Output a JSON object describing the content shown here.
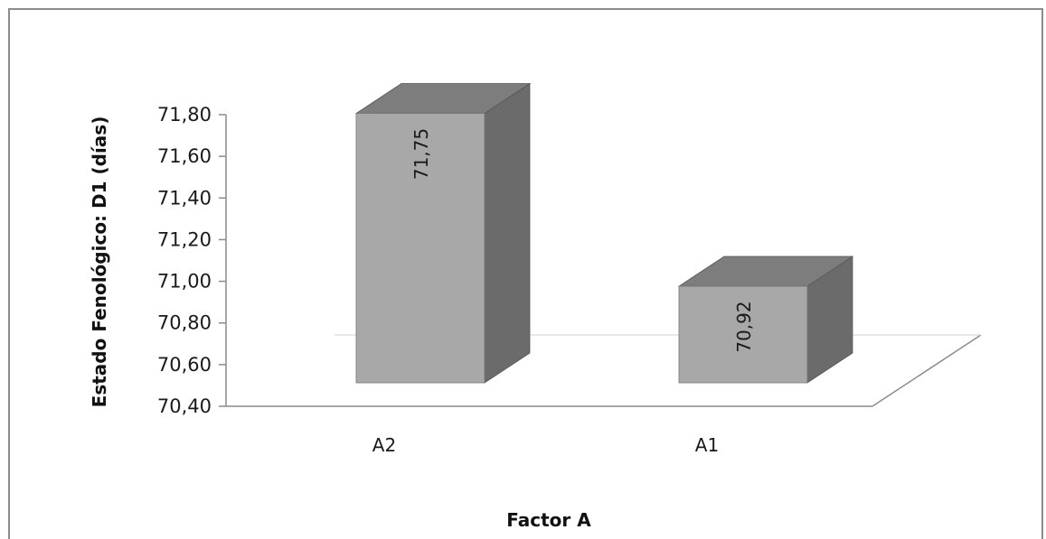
{
  "chart_data": {
    "type": "bar",
    "categories": [
      "A2",
      "A1"
    ],
    "values": [
      71.75,
      70.92
    ],
    "data_labels": [
      "71,75",
      "70,92"
    ],
    "xlabel": "Factor A",
    "ylabel": "Estado Fenológico: D1 (días)",
    "ylim": [
      70.4,
      71.8
    ],
    "yticks": [
      70.4,
      70.6,
      70.8,
      71.0,
      71.2,
      71.4,
      71.6,
      71.8
    ],
    "ytick_labels": [
      "70,40",
      "70,60",
      "70,80",
      "71,00",
      "71,20",
      "71,40",
      "71,60",
      "71,80"
    ],
    "grid": false,
    "legend": "none",
    "style": "3d-column",
    "colors": {
      "bar_front": "#a8a8a8",
      "bar_side": "#6b6b6b",
      "bar_top": "#7d7d7d",
      "axis": "#8c8c8c"
    }
  }
}
